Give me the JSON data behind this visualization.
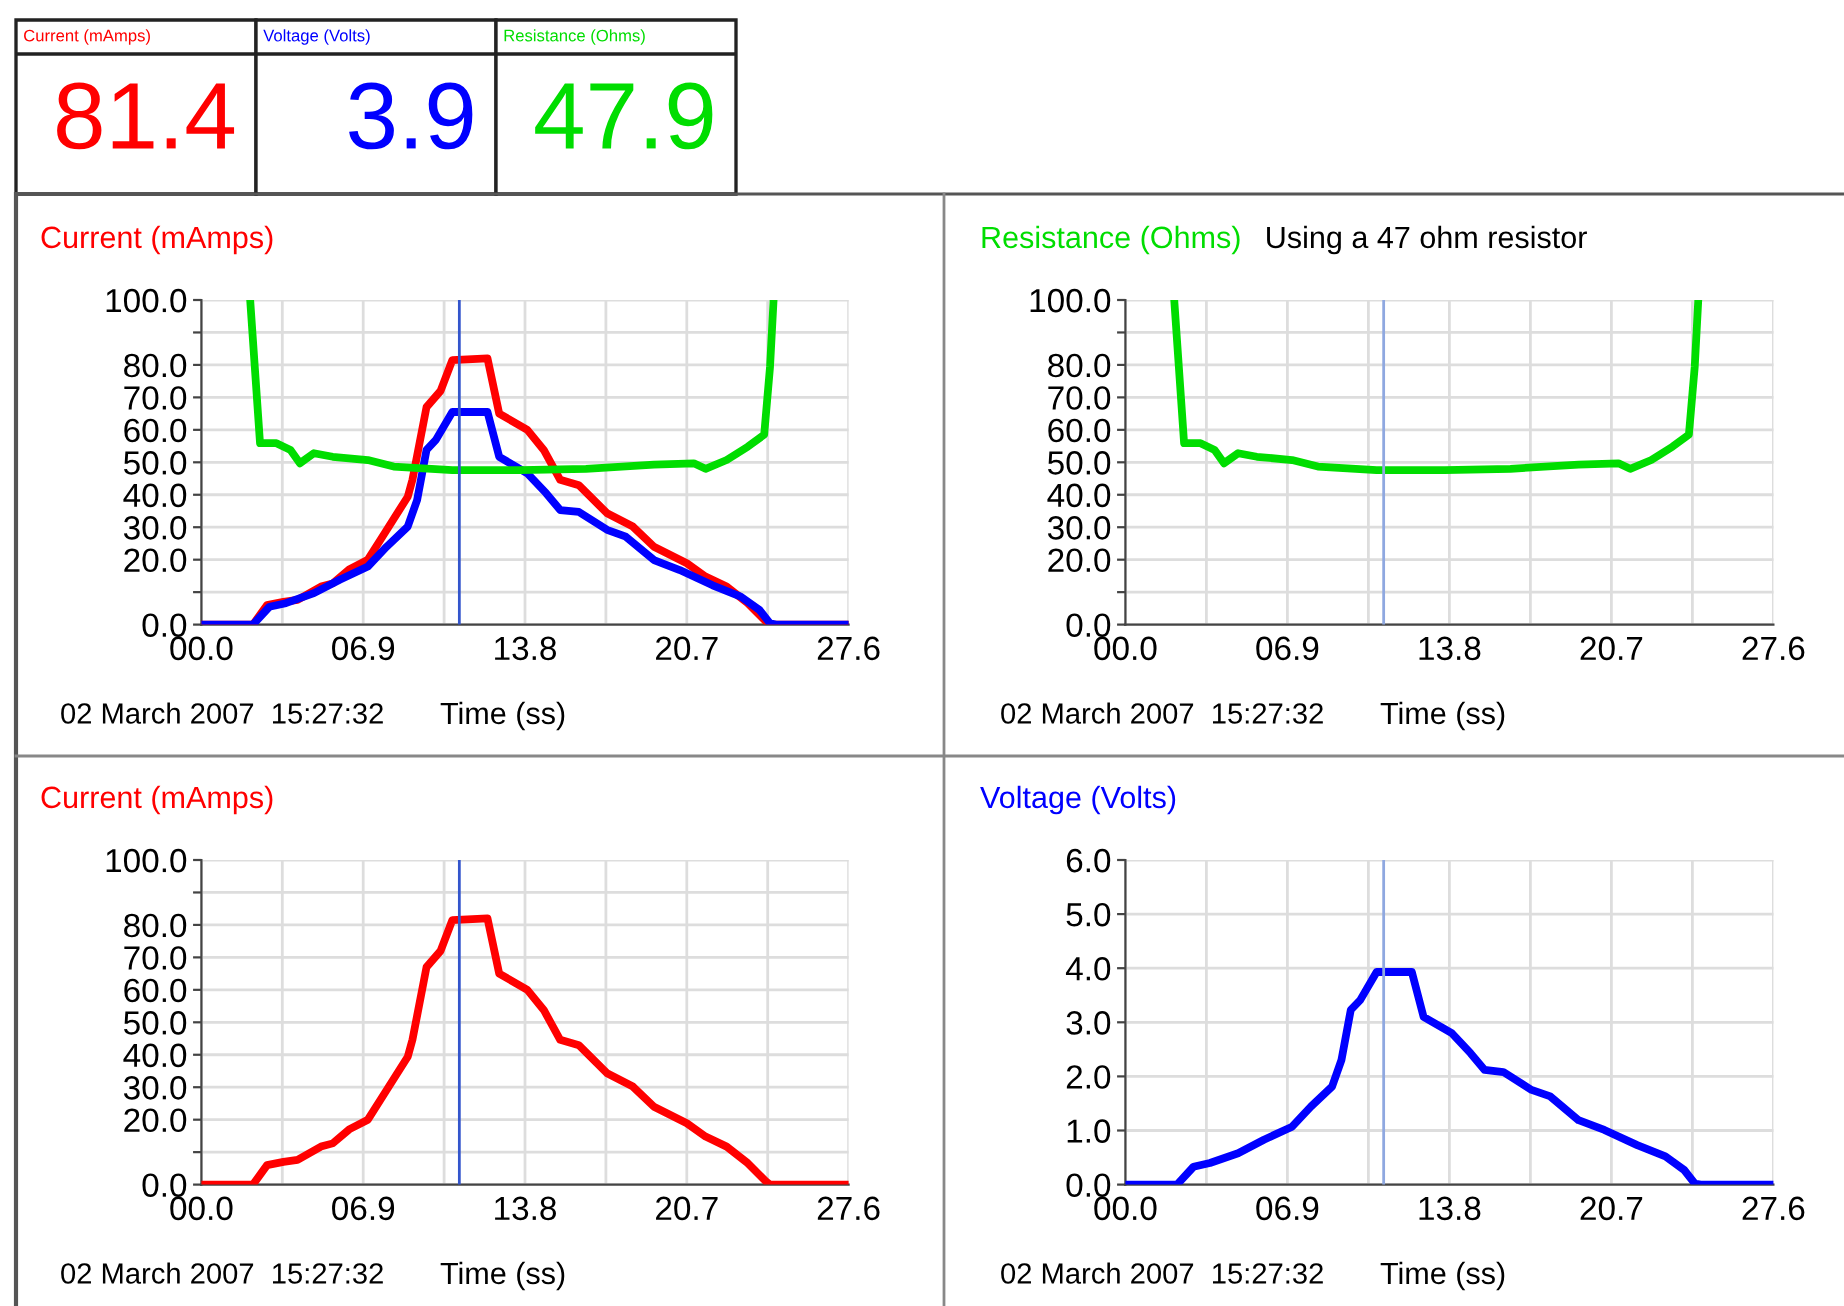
{
  "chart_data": [
    {
      "type": "other",
      "title": "Current (mAmps)",
      "annotations": [
        "81.4"
      ],
      "color": "#ff0000"
    },
    {
      "type": "other",
      "title": "Voltage (Volts)",
      "annotations": [
        "3.9"
      ],
      "color": "#0000ff"
    },
    {
      "type": "other",
      "title": "Resistance (Ohms)",
      "annotations": [
        "47.9"
      ],
      "color": "#00dd00"
    },
    {
      "type": "line",
      "title": "Current (mAmps)",
      "xlabel": "Time (ss)",
      "annotations": [
        "02 March 2007  15:27:32"
      ],
      "xlim": [
        0,
        27.6
      ],
      "ylim": [
        0,
        100
      ],
      "xticks": [
        {
          "value": 0,
          "label": "00.0"
        },
        {
          "value": 3.45,
          "label": null
        },
        {
          "value": 6.9,
          "label": "06.9"
        },
        {
          "value": 10.35,
          "label": null
        },
        {
          "value": 13.8,
          "label": "13.8"
        },
        {
          "value": 17.25,
          "label": null
        },
        {
          "value": 20.7,
          "label": "20.7"
        },
        {
          "value": 24.15,
          "label": null
        },
        {
          "value": 27.6,
          "label": "27.6"
        }
      ],
      "yticks": [
        {
          "value": 0,
          "label": "0.0"
        },
        {
          "value": 10,
          "label": null
        },
        {
          "value": 20,
          "label": "20.0"
        },
        {
          "value": 30,
          "label": "30.0"
        },
        {
          "value": 40,
          "label": "40.0"
        },
        {
          "value": 50,
          "label": "50.0"
        },
        {
          "value": 60,
          "label": "60.0"
        },
        {
          "value": 70,
          "label": "70.0"
        },
        {
          "value": 80,
          "label": "80.0"
        },
        {
          "value": 90,
          "label": null
        },
        {
          "value": 100,
          "label": "100.0"
        }
      ],
      "grid": true,
      "ref_lines": [
        {
          "axis": "x",
          "value": 11.0,
          "color": "#3355cc"
        }
      ],
      "series": [
        {
          "color": "#ff0000",
          "x": [
            0,
            2.2,
            2.8,
            3.5,
            4.1,
            5.1,
            5.6,
            6.3,
            7.1,
            7.8,
            8.8,
            9.0,
            9.6,
            10.2,
            10.7,
            12.2,
            12.7,
            13.9,
            14.6,
            15.3,
            16.1,
            17.3,
            18.4,
            19.3,
            20.7,
            21.5,
            22.4,
            23.3,
            24.1,
            24.25,
            27.6
          ],
          "values": [
            0,
            0,
            6,
            7,
            7.6,
            11.7,
            12.7,
            17,
            20,
            28,
            39.4,
            44.6,
            67,
            72,
            81.5,
            82,
            65,
            60,
            53.8,
            44.6,
            42.9,
            34.3,
            30.2,
            24,
            18.9,
            14.8,
            11.7,
            6.6,
            0.8,
            0,
            0
          ]
        },
        {
          "color": "#0000ff",
          "x": [
            0,
            2.2,
            2.9,
            3.6,
            4.8,
            5.9,
            7.1,
            7.9,
            8.8,
            9.2,
            9.6,
            10.0,
            10.7,
            12.2,
            12.7,
            13.9,
            14.7,
            15.3,
            16.1,
            17.3,
            18.1,
            19.3,
            20.4,
            21.8,
            23.0,
            23.8,
            24.25,
            24.5,
            27.6
          ],
          "values": [
            0,
            0,
            5.5,
            6.6,
            9.7,
            13.8,
            17.9,
            24,
            30.2,
            38.4,
            53.8,
            56.9,
            65.5,
            65.5,
            51.7,
            46.6,
            40.5,
            35.3,
            34.7,
            29.2,
            27.1,
            19.9,
            16.8,
            12.1,
            8.6,
            4.5,
            0.4,
            0,
            0
          ]
        },
        {
          "color": "#00dd00",
          "x": [
            2.08,
            2.5,
            3.2,
            3.8,
            4.2,
            4.8,
            5.6,
            7.1,
            8.2,
            10.7,
            13.6,
            16.4,
            19.3,
            21.0,
            21.5,
            22.4,
            23.3,
            24.0,
            24.25,
            24.4
          ],
          "values": [
            100,
            55.9,
            55.9,
            53.8,
            49.7,
            52.8,
            51.7,
            50.7,
            48.7,
            47.6,
            47.6,
            48.0,
            49.3,
            49.7,
            48.0,
            50.7,
            54.8,
            58.5,
            79.5,
            100
          ]
        }
      ]
    },
    {
      "type": "line",
      "title": "Resistance (Ohms)",
      "subtitle": "Using a 47 ohm resistor",
      "xlabel": "Time (ss)",
      "annotations": [
        "02 March 2007  15:27:32"
      ],
      "xlim": [
        0,
        27.6
      ],
      "ylim": [
        0,
        100
      ],
      "xticks": [
        {
          "value": 0,
          "label": "00.0"
        },
        {
          "value": 3.45,
          "label": null
        },
        {
          "value": 6.9,
          "label": "06.9"
        },
        {
          "value": 10.35,
          "label": null
        },
        {
          "value": 13.8,
          "label": "13.8"
        },
        {
          "value": 17.25,
          "label": null
        },
        {
          "value": 20.7,
          "label": "20.7"
        },
        {
          "value": 24.15,
          "label": null
        },
        {
          "value": 27.6,
          "label": "27.6"
        }
      ],
      "yticks": [
        {
          "value": 0,
          "label": "0.0"
        },
        {
          "value": 10,
          "label": null
        },
        {
          "value": 20,
          "label": "20.0"
        },
        {
          "value": 30,
          "label": "30.0"
        },
        {
          "value": 40,
          "label": "40.0"
        },
        {
          "value": 50,
          "label": "50.0"
        },
        {
          "value": 60,
          "label": "60.0"
        },
        {
          "value": 70,
          "label": "70.0"
        },
        {
          "value": 80,
          "label": "80.0"
        },
        {
          "value": 90,
          "label": null
        },
        {
          "value": 100,
          "label": "100.0"
        }
      ],
      "grid": true,
      "ref_lines": [
        {
          "axis": "x",
          "value": 11.0,
          "color": "#8fa8e0"
        }
      ],
      "series": [
        {
          "color": "#00dd00",
          "x": [
            2.08,
            2.5,
            3.2,
            3.8,
            4.2,
            4.8,
            5.6,
            7.1,
            8.2,
            10.7,
            13.6,
            16.4,
            19.3,
            21.0,
            21.5,
            22.4,
            23.3,
            24.0,
            24.25,
            24.4
          ],
          "values": [
            100,
            55.9,
            55.9,
            53.8,
            49.7,
            52.8,
            51.7,
            50.7,
            48.7,
            47.6,
            47.6,
            48.0,
            49.3,
            49.7,
            48.0,
            50.7,
            54.8,
            58.5,
            79.5,
            100
          ]
        }
      ]
    },
    {
      "type": "line",
      "title": "Current (mAmps)",
      "xlabel": "Time (ss)",
      "annotations": [
        "02 March 2007  15:27:32"
      ],
      "xlim": [
        0,
        27.6
      ],
      "ylim": [
        0,
        100
      ],
      "xticks": [
        {
          "value": 0,
          "label": "00.0"
        },
        {
          "value": 3.45,
          "label": null
        },
        {
          "value": 6.9,
          "label": "06.9"
        },
        {
          "value": 10.35,
          "label": null
        },
        {
          "value": 13.8,
          "label": "13.8"
        },
        {
          "value": 17.25,
          "label": null
        },
        {
          "value": 20.7,
          "label": "20.7"
        },
        {
          "value": 24.15,
          "label": null
        },
        {
          "value": 27.6,
          "label": "27.6"
        }
      ],
      "yticks": [
        {
          "value": 0,
          "label": "0.0"
        },
        {
          "value": 10,
          "label": null
        },
        {
          "value": 20,
          "label": "20.0"
        },
        {
          "value": 30,
          "label": "30.0"
        },
        {
          "value": 40,
          "label": "40.0"
        },
        {
          "value": 50,
          "label": "50.0"
        },
        {
          "value": 60,
          "label": "60.0"
        },
        {
          "value": 70,
          "label": "70.0"
        },
        {
          "value": 80,
          "label": "80.0"
        },
        {
          "value": 90,
          "label": null
        },
        {
          "value": 100,
          "label": "100.0"
        }
      ],
      "grid": true,
      "ref_lines": [
        {
          "axis": "x",
          "value": 11.0,
          "color": "#3355cc"
        }
      ],
      "series": [
        {
          "color": "#ff0000",
          "x": [
            0,
            2.2,
            2.8,
            3.5,
            4.1,
            5.1,
            5.6,
            6.3,
            7.1,
            7.8,
            8.8,
            9.0,
            9.6,
            10.2,
            10.7,
            12.2,
            12.7,
            13.9,
            14.6,
            15.3,
            16.1,
            17.3,
            18.4,
            19.3,
            20.7,
            21.5,
            22.4,
            23.3,
            24.1,
            24.25,
            27.6
          ],
          "values": [
            0,
            0,
            6,
            7,
            7.6,
            11.7,
            12.7,
            17,
            20,
            28,
            39.4,
            44.6,
            67,
            72,
            81.5,
            82,
            65,
            60,
            53.8,
            44.6,
            42.9,
            34.3,
            30.2,
            24,
            18.9,
            14.8,
            11.7,
            6.6,
            0.8,
            0,
            0
          ]
        }
      ]
    },
    {
      "type": "line",
      "title": "Voltage (Volts)",
      "xlabel": "Time (ss)",
      "annotations": [
        "02 March 2007  15:27:32"
      ],
      "xlim": [
        0,
        27.6
      ],
      "ylim": [
        0,
        6
      ],
      "xticks": [
        {
          "value": 0,
          "label": "00.0"
        },
        {
          "value": 3.45,
          "label": null
        },
        {
          "value": 6.9,
          "label": "06.9"
        },
        {
          "value": 10.35,
          "label": null
        },
        {
          "value": 13.8,
          "label": "13.8"
        },
        {
          "value": 17.25,
          "label": null
        },
        {
          "value": 20.7,
          "label": "20.7"
        },
        {
          "value": 24.15,
          "label": null
        },
        {
          "value": 27.6,
          "label": "27.6"
        }
      ],
      "yticks": [
        {
          "value": 0,
          "label": "0.0"
        },
        {
          "value": 1,
          "label": "1.0"
        },
        {
          "value": 2,
          "label": "2.0"
        },
        {
          "value": 3,
          "label": "3.0"
        },
        {
          "value": 4,
          "label": "4.0"
        },
        {
          "value": 5,
          "label": "5.0"
        },
        {
          "value": 6,
          "label": "6.0"
        }
      ],
      "grid": true,
      "ref_lines": [
        {
          "axis": "x",
          "value": 11.0,
          "color": "#8fa8e0"
        }
      ],
      "series": [
        {
          "color": "#0000ff",
          "x": [
            0,
            2.2,
            2.9,
            3.6,
            4.8,
            5.9,
            7.1,
            7.9,
            8.8,
            9.2,
            9.6,
            10.0,
            10.7,
            12.2,
            12.7,
            13.9,
            14.7,
            15.3,
            16.1,
            17.3,
            18.1,
            19.3,
            20.4,
            21.8,
            23.0,
            23.8,
            24.25,
            24.5,
            27.6
          ],
          "values": [
            0,
            0,
            0.33,
            0.4,
            0.58,
            0.83,
            1.07,
            1.44,
            1.81,
            2.3,
            3.23,
            3.41,
            3.93,
            3.93,
            3.1,
            2.8,
            2.43,
            2.12,
            2.08,
            1.75,
            1.63,
            1.19,
            1.01,
            0.73,
            0.52,
            0.27,
            0.02,
            0,
            0
          ]
        }
      ]
    }
  ]
}
